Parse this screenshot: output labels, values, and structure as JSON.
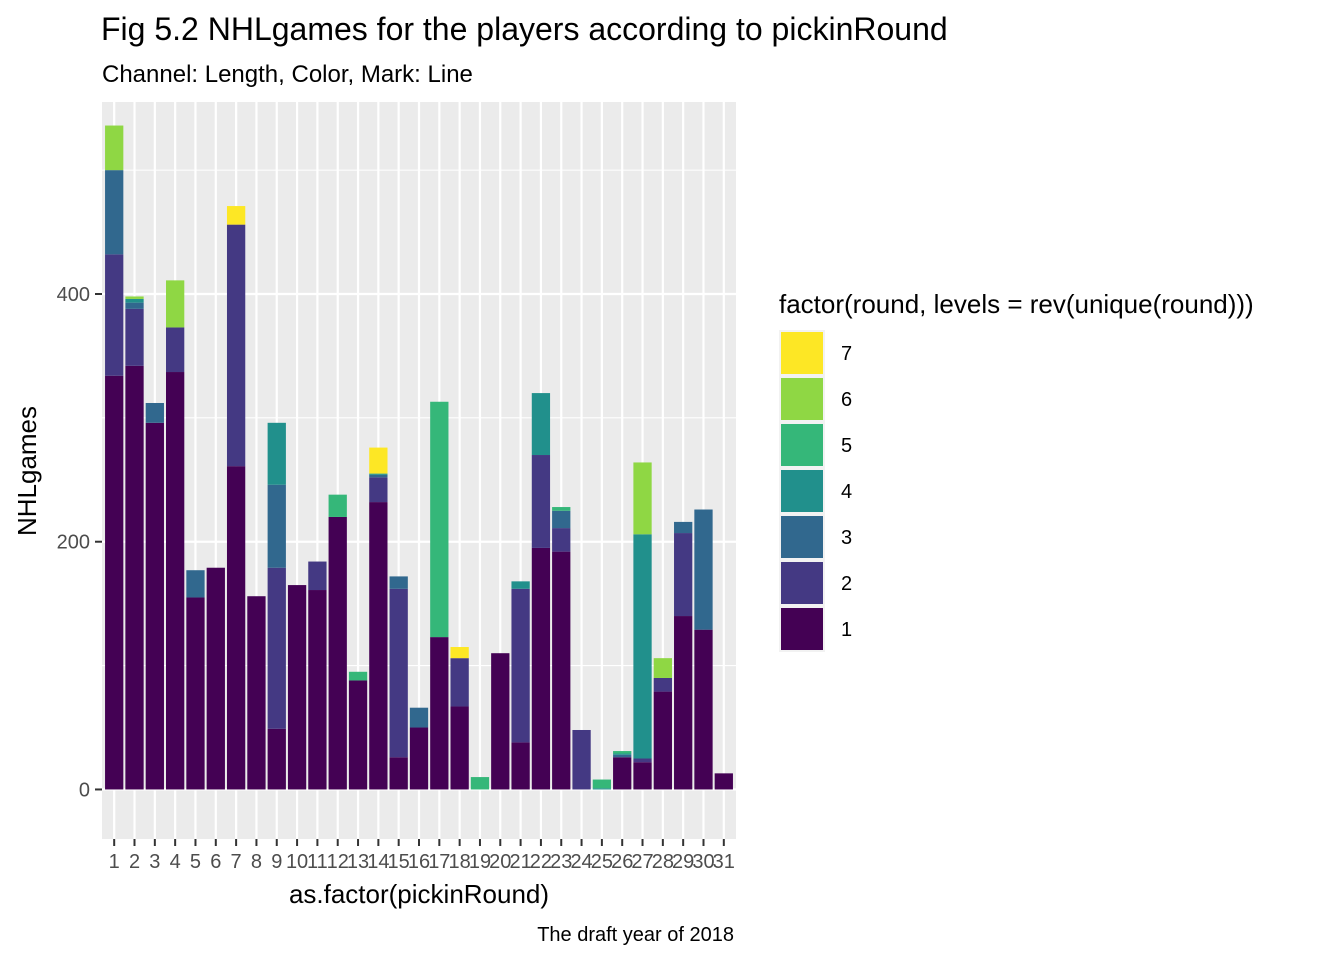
{
  "chart_data": {
    "type": "bar",
    "stacked": true,
    "title": "Fig 5.2 NHLgames for the players according to pickinRound",
    "subtitle": "Channel: Length, Color, Mark: Line",
    "caption": "The draft year of 2018",
    "xlabel": "as.factor(pickinRound)",
    "ylabel": "NHLgames",
    "ylim": [
      -40,
      555
    ],
    "yticks": [
      0,
      200,
      400
    ],
    "grid": true,
    "legend_position": "right",
    "legend_title": "factor(round, levels = rev(unique(round)))",
    "legend_order": [
      "7",
      "6",
      "5",
      "4",
      "3",
      "2",
      "1"
    ],
    "categories": [
      "1",
      "2",
      "3",
      "4",
      "5",
      "6",
      "7",
      "8",
      "9",
      "10",
      "11",
      "12",
      "13",
      "14",
      "15",
      "16",
      "17",
      "18",
      "19",
      "20",
      "21",
      "22",
      "23",
      "24",
      "25",
      "26",
      "27",
      "28",
      "29",
      "30",
      "31"
    ],
    "series": [
      {
        "name": "1",
        "color": "#440154",
        "values": [
          334,
          342,
          296,
          337,
          155,
          179,
          261,
          156,
          49,
          165,
          161,
          220,
          88,
          232,
          26,
          50,
          123,
          67,
          0,
          110,
          38,
          195,
          192,
          0,
          0,
          26,
          22,
          79,
          140,
          129,
          13
        ]
      },
      {
        "name": "2",
        "color": "#443983",
        "values": [
          98,
          46,
          0,
          36,
          0,
          0,
          195,
          0,
          130,
          0,
          23,
          0,
          0,
          20,
          136,
          0,
          0,
          39,
          0,
          0,
          124,
          75,
          19,
          48,
          0,
          0,
          3,
          11,
          67,
          0,
          0
        ]
      },
      {
        "name": "3",
        "color": "#31688E",
        "values": [
          68,
          5,
          16,
          0,
          22,
          0,
          0,
          0,
          67,
          0,
          0,
          0,
          0,
          2,
          10,
          16,
          0,
          0,
          0,
          0,
          0,
          0,
          14,
          0,
          0,
          2,
          0,
          0,
          9,
          97,
          0
        ]
      },
      {
        "name": "4",
        "color": "#21908C",
        "values": [
          0,
          3,
          0,
          0,
          0,
          0,
          0,
          0,
          50,
          0,
          0,
          0,
          0,
          1,
          0,
          0,
          0,
          0,
          0,
          0,
          6,
          50,
          0,
          0,
          1,
          1,
          181,
          0,
          0,
          0,
          0
        ]
      },
      {
        "name": "5",
        "color": "#35B779",
        "values": [
          0,
          0,
          0,
          0,
          0,
          0,
          0,
          0,
          0,
          0,
          0,
          18,
          7,
          0,
          0,
          0,
          190,
          0,
          10,
          0,
          0,
          0,
          3,
          0,
          7,
          2,
          0,
          0,
          0,
          0,
          0
        ]
      },
      {
        "name": "6",
        "color": "#8FD744",
        "values": [
          36,
          2,
          0,
          38,
          0,
          0,
          0,
          0,
          0,
          0,
          0,
          0,
          0,
          0,
          0,
          0,
          0,
          0,
          0,
          0,
          0,
          0,
          0,
          0,
          0,
          0,
          58,
          16,
          0,
          0,
          0
        ]
      },
      {
        "name": "7",
        "color": "#FDE725",
        "values": [
          0,
          0,
          0,
          0,
          0,
          0,
          15,
          0,
          0,
          0,
          0,
          0,
          0,
          21,
          0,
          0,
          0,
          9,
          0,
          0,
          0,
          0,
          0,
          0,
          0,
          0,
          0,
          0,
          0,
          0,
          0
        ]
      }
    ]
  }
}
